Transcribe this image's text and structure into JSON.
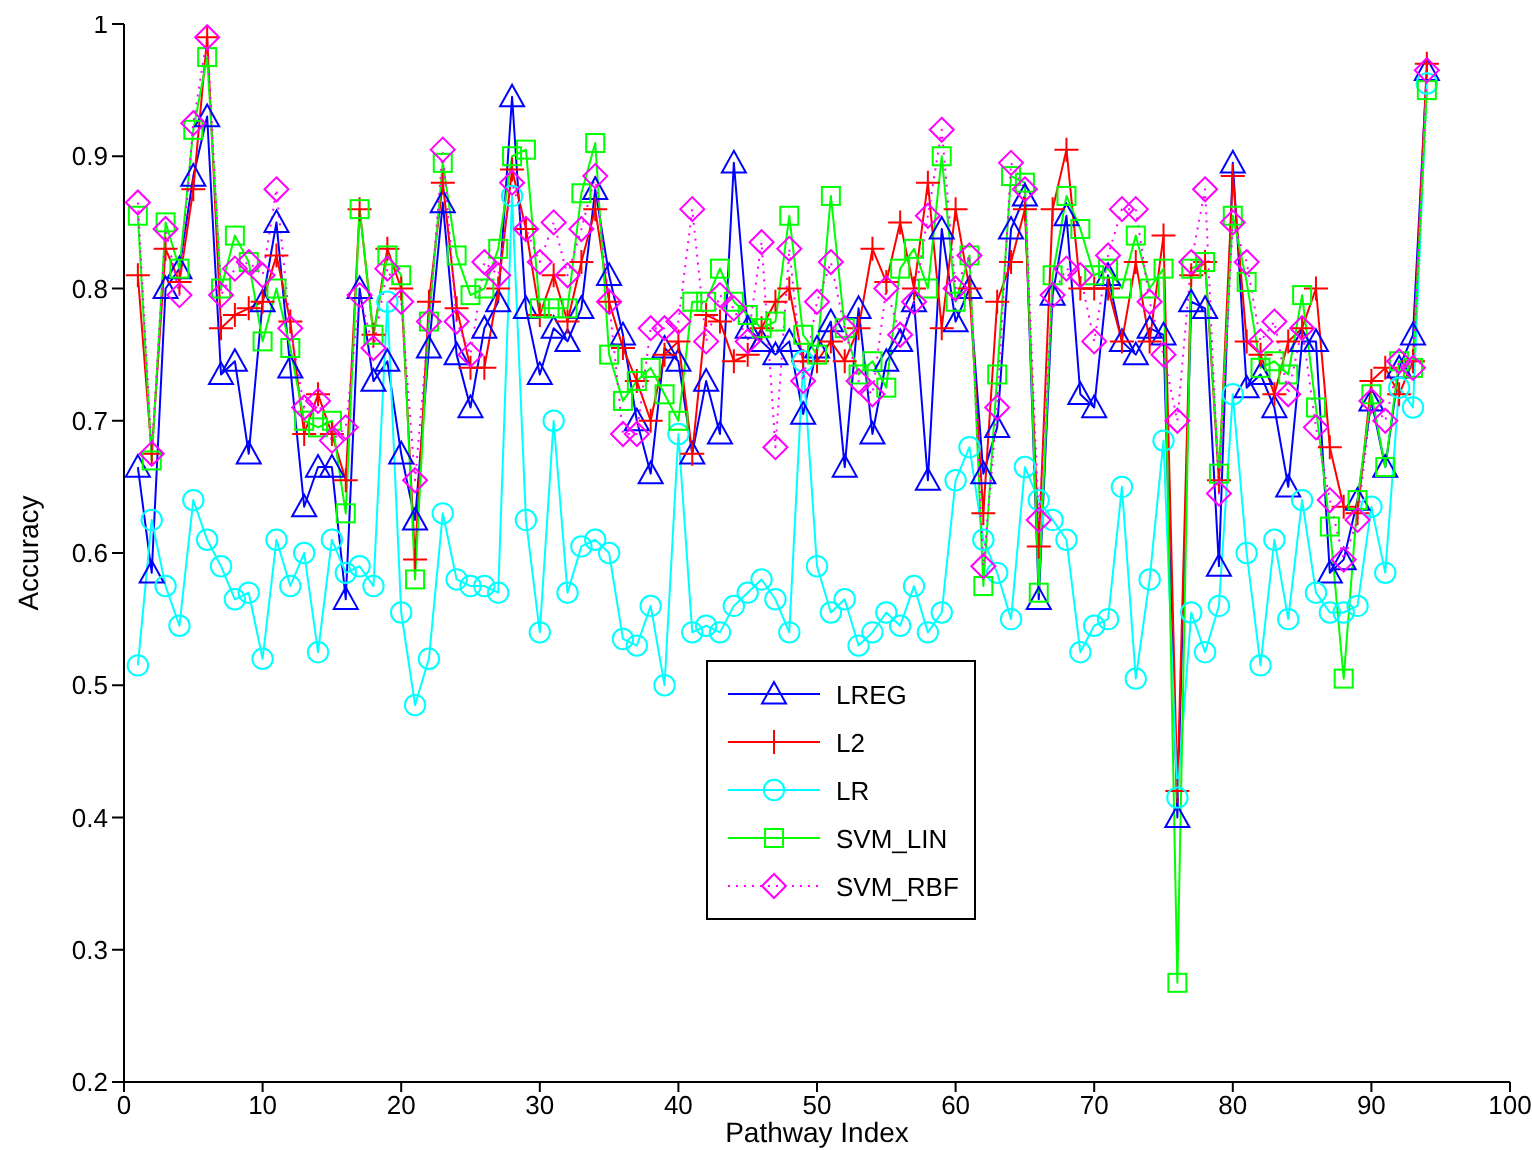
{
  "chart_data": {
    "type": "line",
    "xlabel": "Pathway Index",
    "ylabel": "Accuracy",
    "x": [
      1,
      2,
      3,
      4,
      5,
      6,
      7,
      8,
      9,
      10,
      11,
      12,
      13,
      14,
      15,
      16,
      17,
      18,
      19,
      20,
      21,
      22,
      23,
      24,
      25,
      26,
      27,
      28,
      29,
      30,
      31,
      32,
      33,
      34,
      35,
      36,
      37,
      38,
      39,
      40,
      41,
      42,
      43,
      44,
      45,
      46,
      47,
      48,
      49,
      50,
      51,
      52,
      53,
      54,
      55,
      56,
      57,
      58,
      59,
      60,
      61,
      62,
      63,
      64,
      65,
      66,
      67,
      68,
      69,
      70,
      71,
      72,
      73,
      74,
      75,
      76,
      77,
      78,
      79,
      80,
      81,
      82,
      83,
      84,
      85,
      86,
      87,
      88,
      89,
      90,
      91,
      92,
      93,
      94
    ],
    "xlim": [
      0,
      100
    ],
    "xticks": [
      0,
      10,
      20,
      30,
      40,
      50,
      60,
      70,
      80,
      90,
      100
    ],
    "ylim": [
      0.2,
      1
    ],
    "yticks": [
      0.2,
      0.3,
      0.4,
      0.5,
      0.6,
      0.7,
      0.8,
      0.9,
      1
    ],
    "grid": false,
    "legend": "bottom",
    "series": [
      {
        "name": "LREG",
        "color": "#0000ff",
        "marker": "triangle",
        "line_style": "solid",
        "values": [
          0.665,
          0.585,
          0.8,
          0.815,
          0.885,
          0.93,
          0.735,
          0.745,
          0.675,
          0.79,
          0.85,
          0.74,
          0.635,
          0.665,
          0.665,
          0.565,
          0.8,
          0.73,
          0.745,
          0.675,
          0.625,
          0.755,
          0.865,
          0.75,
          0.71,
          0.77,
          0.79,
          0.945,
          0.785,
          0.735,
          0.77,
          0.76,
          0.785,
          0.875,
          0.81,
          0.765,
          0.7,
          0.66,
          0.755,
          0.745,
          0.675,
          0.73,
          0.69,
          0.895,
          0.77,
          0.76,
          0.75,
          0.76,
          0.705,
          0.755,
          0.775,
          0.665,
          0.785,
          0.69,
          0.745,
          0.76,
          0.79,
          0.655,
          0.845,
          0.775,
          0.8,
          0.66,
          0.695,
          0.845,
          0.87,
          0.565,
          0.795,
          0.855,
          0.72,
          0.71,
          0.81,
          0.76,
          0.75,
          0.77,
          0.765,
          0.4,
          0.79,
          0.785,
          0.59,
          0.895,
          0.725,
          0.735,
          0.71,
          0.65,
          0.76,
          0.76,
          0.585,
          0.595,
          0.64,
          0.715,
          0.665,
          0.74,
          0.765,
          0.965
        ]
      },
      {
        "name": "L2",
        "color": "#ff0000",
        "marker": "cross",
        "line_style": "solid",
        "values": [
          0.81,
          0.675,
          0.83,
          0.805,
          0.875,
          0.99,
          0.77,
          0.78,
          0.785,
          0.79,
          0.825,
          0.775,
          0.69,
          0.72,
          0.69,
          0.655,
          0.86,
          0.765,
          0.83,
          0.8,
          0.595,
          0.79,
          0.88,
          0.785,
          0.74,
          0.74,
          0.8,
          0.89,
          0.845,
          0.78,
          0.81,
          0.775,
          0.82,
          0.86,
          0.79,
          0.755,
          0.73,
          0.7,
          0.75,
          0.76,
          0.675,
          0.78,
          0.775,
          0.745,
          0.75,
          0.77,
          0.79,
          0.8,
          0.745,
          0.745,
          0.76,
          0.745,
          0.77,
          0.83,
          0.805,
          0.85,
          0.8,
          0.88,
          0.77,
          0.86,
          0.8,
          0.63,
          0.79,
          0.82,
          0.86,
          0.605,
          0.86,
          0.905,
          0.8,
          0.8,
          0.8,
          0.76,
          0.82,
          0.76,
          0.84,
          0.42,
          0.81,
          0.82,
          0.655,
          0.885,
          0.76,
          0.75,
          0.72,
          0.76,
          0.77,
          0.8,
          0.68,
          0.635,
          0.63,
          0.73,
          0.74,
          0.72,
          0.745,
          0.97
        ]
      },
      {
        "name": "LR",
        "color": "#00ffff",
        "marker": "circle",
        "line_style": "solid",
        "values": [
          0.515,
          0.625,
          0.575,
          0.545,
          0.64,
          0.61,
          0.59,
          0.565,
          0.57,
          0.52,
          0.61,
          0.575,
          0.6,
          0.525,
          0.61,
          0.585,
          0.59,
          0.575,
          0.79,
          0.555,
          0.485,
          0.52,
          0.63,
          0.58,
          0.575,
          0.575,
          0.57,
          0.87,
          0.625,
          0.54,
          0.7,
          0.57,
          0.605,
          0.61,
          0.6,
          0.535,
          0.53,
          0.56,
          0.5,
          0.69,
          0.54,
          0.545,
          0.54,
          0.56,
          0.57,
          0.58,
          0.565,
          0.54,
          0.745,
          0.59,
          0.555,
          0.565,
          0.53,
          0.54,
          0.555,
          0.545,
          0.575,
          0.54,
          0.555,
          0.655,
          0.68,
          0.61,
          0.585,
          0.55,
          0.665,
          0.64,
          0.625,
          0.61,
          0.525,
          0.545,
          0.55,
          0.65,
          0.505,
          0.58,
          0.685,
          0.415,
          0.555,
          0.525,
          0.56,
          0.72,
          0.6,
          0.515,
          0.61,
          0.55,
          0.64,
          0.57,
          0.555,
          0.555,
          0.56,
          0.635,
          0.585,
          0.725,
          0.71,
          0.955
        ]
      },
      {
        "name": "SVM_LIN",
        "color": "#00ff00",
        "marker": "square",
        "line_style": "solid",
        "values": [
          0.855,
          0.67,
          0.85,
          0.815,
          0.92,
          0.975,
          0.8,
          0.84,
          0.82,
          0.76,
          0.8,
          0.755,
          0.7,
          0.695,
          0.7,
          0.63,
          0.86,
          0.765,
          0.825,
          0.81,
          0.58,
          0.775,
          0.895,
          0.825,
          0.795,
          0.8,
          0.83,
          0.9,
          0.905,
          0.785,
          0.785,
          0.785,
          0.872,
          0.91,
          0.75,
          0.715,
          0.73,
          0.74,
          0.72,
          0.7,
          0.79,
          0.79,
          0.815,
          0.79,
          0.78,
          0.77,
          0.775,
          0.855,
          0.765,
          0.75,
          0.87,
          0.77,
          0.735,
          0.745,
          0.725,
          0.815,
          0.83,
          0.8,
          0.9,
          0.79,
          0.825,
          0.575,
          0.735,
          0.885,
          0.88,
          0.57,
          0.81,
          0.87,
          0.845,
          0.81,
          0.815,
          0.8,
          0.84,
          0.8,
          0.815,
          0.275,
          0.815,
          0.82,
          0.66,
          0.855,
          0.805,
          0.74,
          0.745,
          0.735,
          0.795,
          0.71,
          0.62,
          0.505,
          0.64,
          0.72,
          0.665,
          0.745,
          0.74,
          0.95
        ]
      },
      {
        "name": "SVM_RBF",
        "color": "#ff00ff",
        "marker": "diamond",
        "line_style": "dotted",
        "values": [
          0.865,
          0.675,
          0.845,
          0.795,
          0.925,
          0.99,
          0.795,
          0.815,
          0.82,
          0.81,
          0.875,
          0.77,
          0.71,
          0.715,
          0.685,
          0.695,
          0.795,
          0.755,
          0.815,
          0.79,
          0.655,
          0.775,
          0.905,
          0.775,
          0.75,
          0.82,
          0.81,
          0.88,
          0.845,
          0.82,
          0.85,
          0.81,
          0.845,
          0.885,
          0.79,
          0.69,
          0.69,
          0.77,
          0.77,
          0.775,
          0.86,
          0.76,
          0.795,
          0.785,
          0.76,
          0.835,
          0.68,
          0.83,
          0.73,
          0.79,
          0.82,
          0.77,
          0.73,
          0.72,
          0.8,
          0.765,
          0.79,
          0.855,
          0.92,
          0.8,
          0.825,
          0.59,
          0.71,
          0.895,
          0.875,
          0.625,
          0.795,
          0.815,
          0.81,
          0.76,
          0.825,
          0.86,
          0.86,
          0.79,
          0.75,
          0.7,
          0.82,
          0.875,
          0.645,
          0.85,
          0.82,
          0.76,
          0.775,
          0.72,
          0.77,
          0.695,
          0.64,
          0.595,
          0.625,
          0.715,
          0.7,
          0.745,
          0.74,
          0.965
        ]
      }
    ]
  }
}
